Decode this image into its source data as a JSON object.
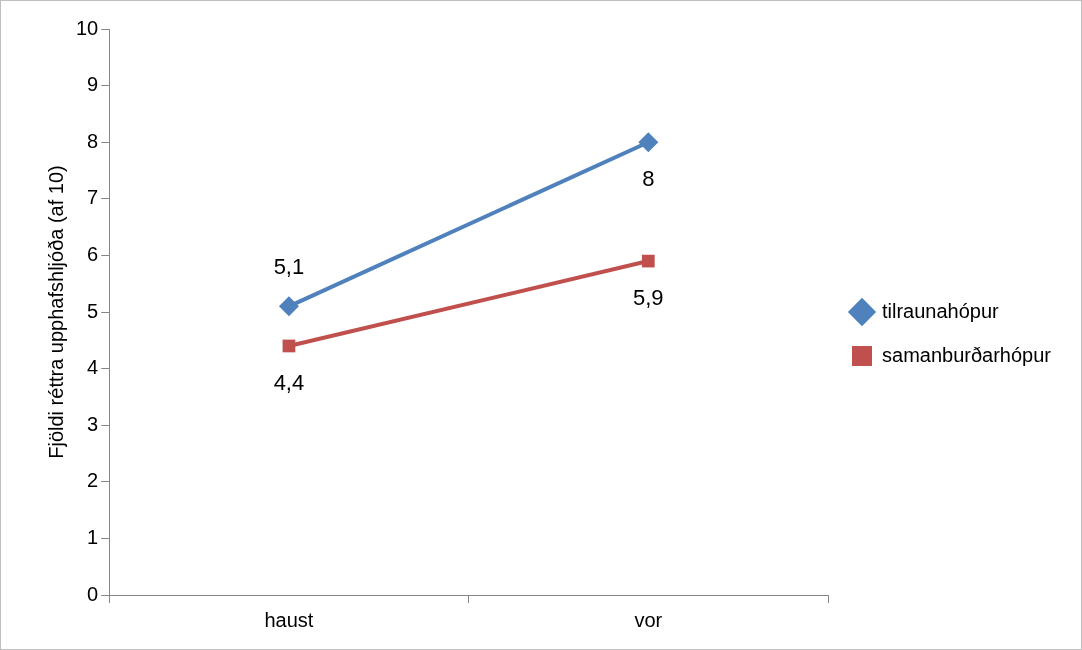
{
  "chart_data": {
    "type": "line",
    "ylabel": "Fjöldi réttra upphafshljóða (af 10)",
    "categories": [
      "haust",
      "vor"
    ],
    "series": [
      {
        "name": "tilraunahópur",
        "color": "#4f81bd",
        "values": [
          5.1,
          8
        ],
        "marker": "diamond",
        "value_labels": [
          "5,1",
          "8"
        ]
      },
      {
        "name": "samanburðarhópur",
        "color": "#c0504d",
        "values": [
          4.4,
          5.9
        ],
        "marker": "square",
        "value_labels": [
          "4,4",
          "5,9"
        ]
      }
    ],
    "ylim": [
      0,
      10
    ],
    "yticks": [
      0,
      1,
      2,
      3,
      4,
      5,
      6,
      7,
      8,
      9,
      10
    ],
    "grid": false,
    "legend": "right"
  }
}
